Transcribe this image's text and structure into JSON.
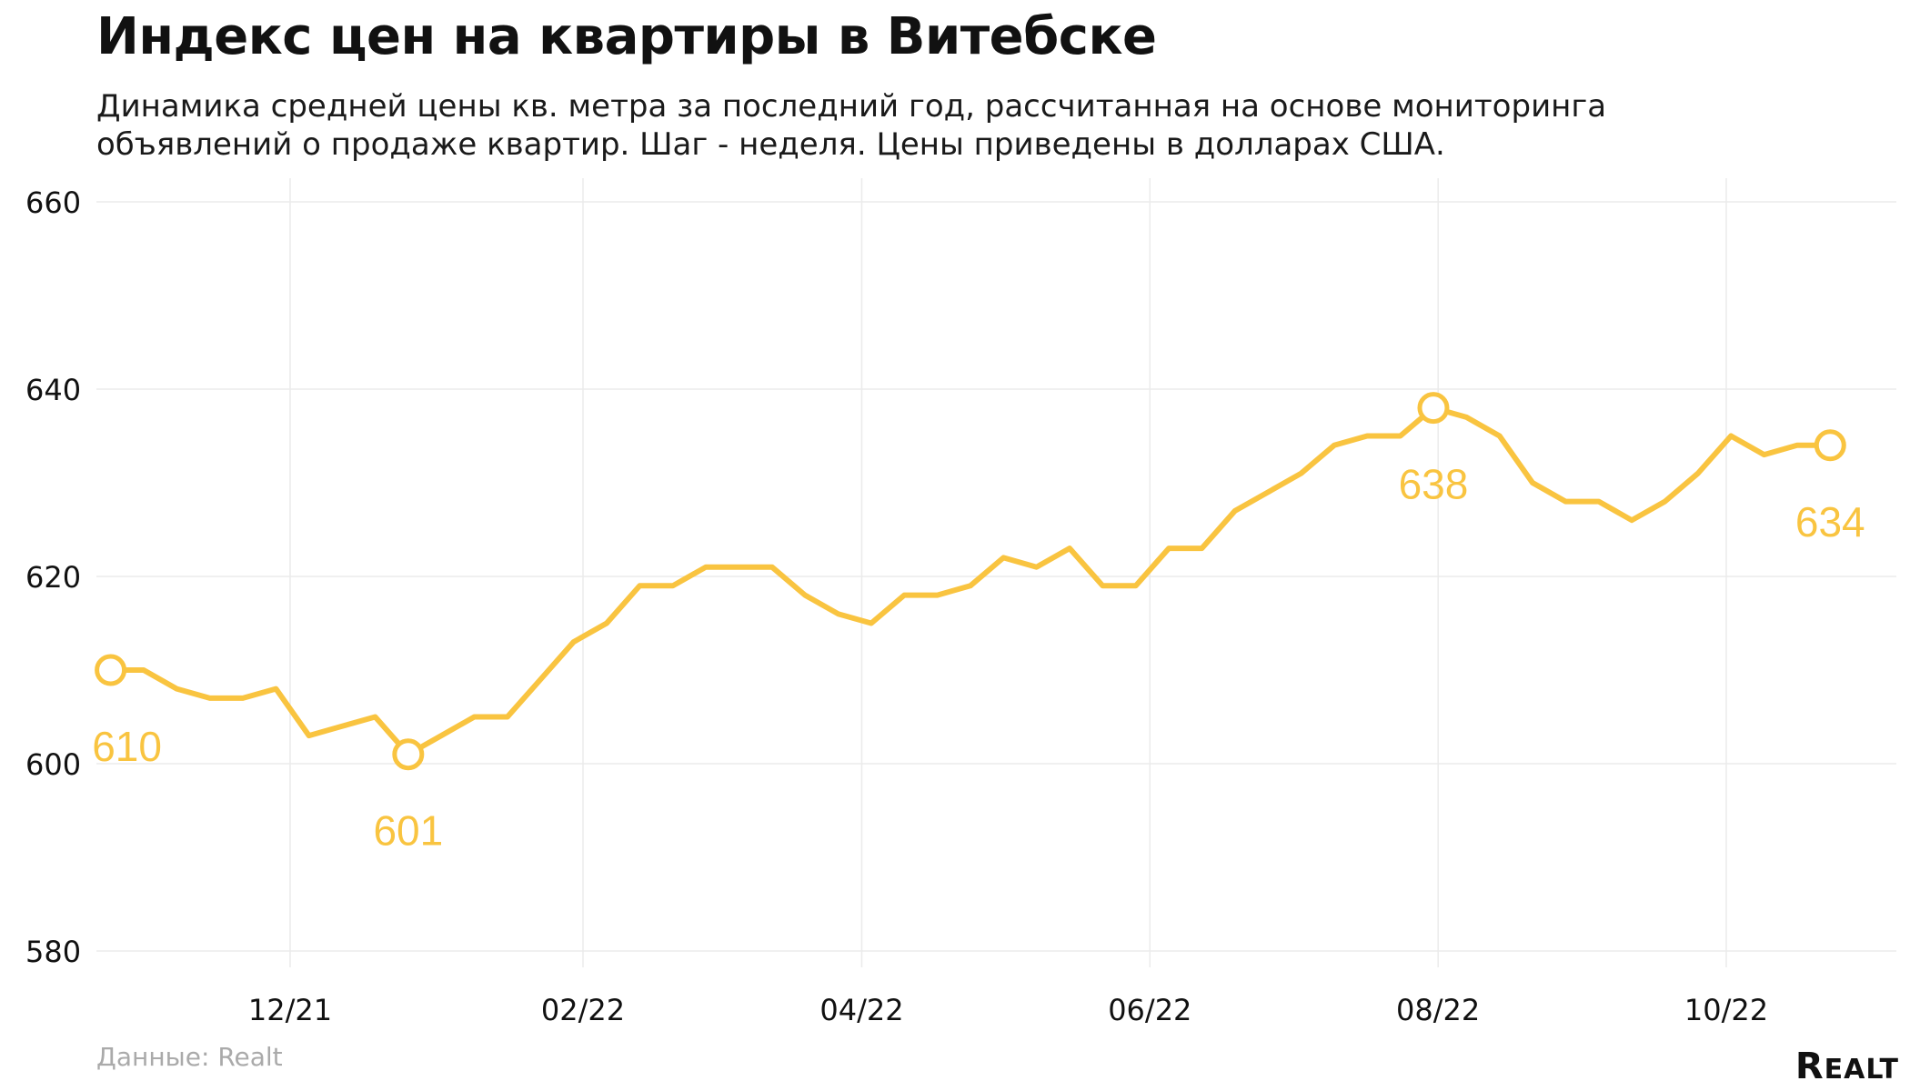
{
  "title": "Индекс цен на квартиры в Витебске",
  "subtitle_line1": "Динамика средней цены кв. метра за последний год, рассчитанная на основе мониторинга",
  "subtitle_line2": "объявлений о продаже квартир. Шаг - неделя. Цены приведены в долларах США.",
  "source": "Данные: Realt",
  "logo": {
    "lead": "R",
    "rest": "EALT"
  },
  "colors": {
    "line": "#F9C440",
    "grid": "#EBEBEB",
    "label": "#F9C440",
    "axis_text": "#111111"
  },
  "chart_data": {
    "type": "line",
    "title": "Индекс цен на квартиры в Витебске",
    "ylim": [
      580,
      660
    ],
    "yticks": [
      580,
      600,
      620,
      640,
      660
    ],
    "grid": true,
    "xlim": [
      "2021-10-21",
      "2022-11-06"
    ],
    "xticks": [
      {
        "date": "2021-12-01",
        "label": "12/21"
      },
      {
        "date": "2022-02-01",
        "label": "02/22"
      },
      {
        "date": "2022-04-01",
        "label": "04/22"
      },
      {
        "date": "2022-06-01",
        "label": "06/22"
      },
      {
        "date": "2022-08-01",
        "label": "08/22"
      },
      {
        "date": "2022-10-01",
        "label": "10/22"
      }
    ],
    "series": [
      {
        "x": [
          "2021-10-24",
          "2021-10-31",
          "2021-11-07",
          "2021-11-14",
          "2021-11-21",
          "2021-11-28",
          "2021-12-05",
          "2021-12-12",
          "2021-12-19",
          "2021-12-26",
          "2022-01-02",
          "2022-01-09",
          "2022-01-16",
          "2022-01-23",
          "2022-01-30",
          "2022-02-06",
          "2022-02-13",
          "2022-02-20",
          "2022-02-27",
          "2022-03-06",
          "2022-03-13",
          "2022-03-20",
          "2022-03-27",
          "2022-04-03",
          "2022-04-10",
          "2022-04-17",
          "2022-04-24",
          "2022-05-01",
          "2022-05-08",
          "2022-05-15",
          "2022-05-22",
          "2022-05-29",
          "2022-06-05",
          "2022-06-12",
          "2022-06-19",
          "2022-06-26",
          "2022-07-03",
          "2022-07-10",
          "2022-07-17",
          "2022-07-24",
          "2022-07-31",
          "2022-08-07",
          "2022-08-14",
          "2022-08-21",
          "2022-08-28",
          "2022-09-04",
          "2022-09-11",
          "2022-09-18",
          "2022-09-25",
          "2022-10-02",
          "2022-10-09",
          "2022-10-16",
          "2022-10-23"
        ],
        "values": [
          610,
          610,
          608,
          607,
          607,
          608,
          603,
          604,
          605,
          601,
          603,
          605,
          605,
          609,
          613,
          615,
          619,
          619,
          621,
          621,
          621,
          618,
          616,
          615,
          618,
          618,
          619,
          622,
          621,
          623,
          619,
          619,
          623,
          623,
          627,
          629,
          631,
          634,
          635,
          635,
          638,
          637,
          635,
          630,
          628,
          628,
          626,
          628,
          631,
          635,
          633,
          634,
          634
        ]
      }
    ],
    "annotations": [
      {
        "x": "2021-10-24",
        "value": 610,
        "label": "610",
        "position": "below"
      },
      {
        "x": "2021-12-26",
        "value": 601,
        "label": "601",
        "position": "below"
      },
      {
        "x": "2022-07-31",
        "value": 638,
        "label": "638",
        "position": "below"
      },
      {
        "x": "2022-10-23",
        "value": 634,
        "label": "634",
        "position": "below"
      }
    ]
  }
}
